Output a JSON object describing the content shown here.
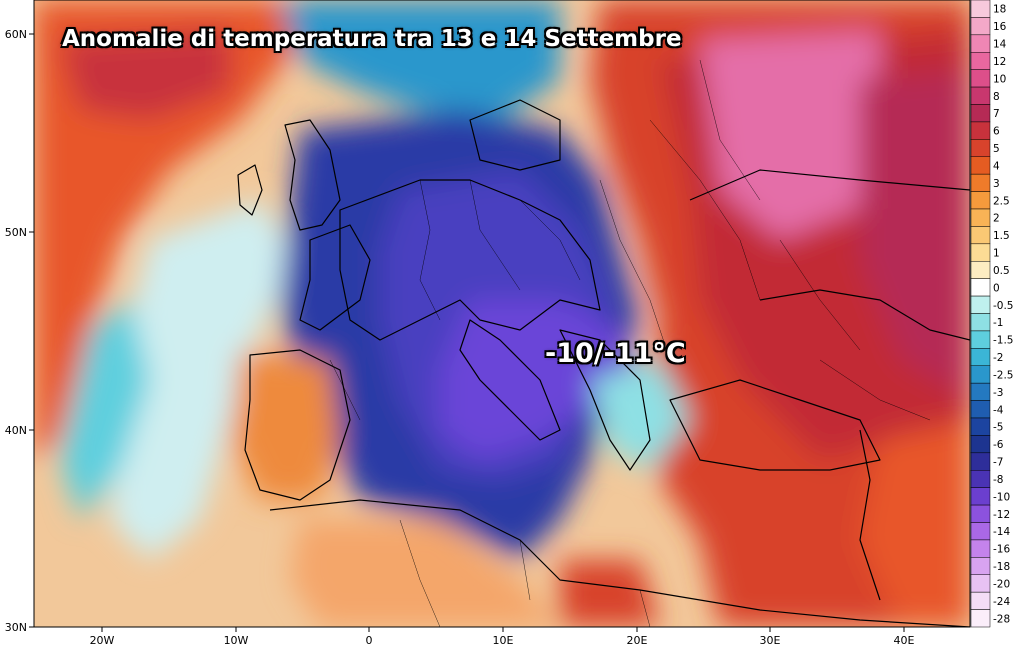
{
  "title": "Anomalie di temperatura tra 13 e 14 Settembre",
  "callout": "-10/-11°C",
  "lat_labels": [
    "60N",
    "50N",
    "40N",
    "30N"
  ],
  "lon_labels": [
    "20W",
    "10W",
    "0",
    "10E",
    "20E",
    "30E",
    "40E"
  ],
  "legend": {
    "labels": [
      "18",
      "16",
      "14",
      "12",
      "10",
      "8",
      "7",
      "6",
      "5",
      "4",
      "3",
      "2.5",
      "2",
      "1.5",
      "1",
      "0.5",
      "0",
      "-0.5",
      "-1",
      "-1.5",
      "-2",
      "-2.5",
      "-3",
      "-4",
      "-5",
      "-6",
      "-7",
      "-8",
      "-10",
      "-12",
      "-14",
      "-16",
      "-18",
      "-20",
      "-24",
      "-28"
    ],
    "colors": [
      "#f7c9dc",
      "#f3a8c8",
      "#ef86b4",
      "#e9679f",
      "#dd4f8a",
      "#c8376e",
      "#b52a55",
      "#c8323c",
      "#d8432c",
      "#e55c22",
      "#ef7b2a",
      "#f59a3c",
      "#f8b356",
      "#fac874",
      "#fcdc95",
      "#fdedc2",
      "#ffffff",
      "#bff0ee",
      "#8ee0e4",
      "#5ecfde",
      "#3bb5d6",
      "#2a97cc",
      "#2479c0",
      "#1f5db0",
      "#1c44a0",
      "#1d3490",
      "#2e2e9a",
      "#4a33b4",
      "#6b3fcf",
      "#8c52de",
      "#aa68e6",
      "#c483ec",
      "#d8a3f0",
      "#e8c2f3",
      "#f4ddf6",
      "#fbeefa"
    ]
  },
  "color_scale": {
    "strong_warm": "#c82e38",
    "warm": "#e8522a",
    "mild_warm": "#f4a05a",
    "neutral": "#fbf3e6",
    "mild_cool": "#7fd6e0",
    "cool": "#2a6fc0",
    "cold": "#2b3aa6",
    "very_cold": "#6b44d8",
    "hot_pink": "#e46ea8"
  }
}
